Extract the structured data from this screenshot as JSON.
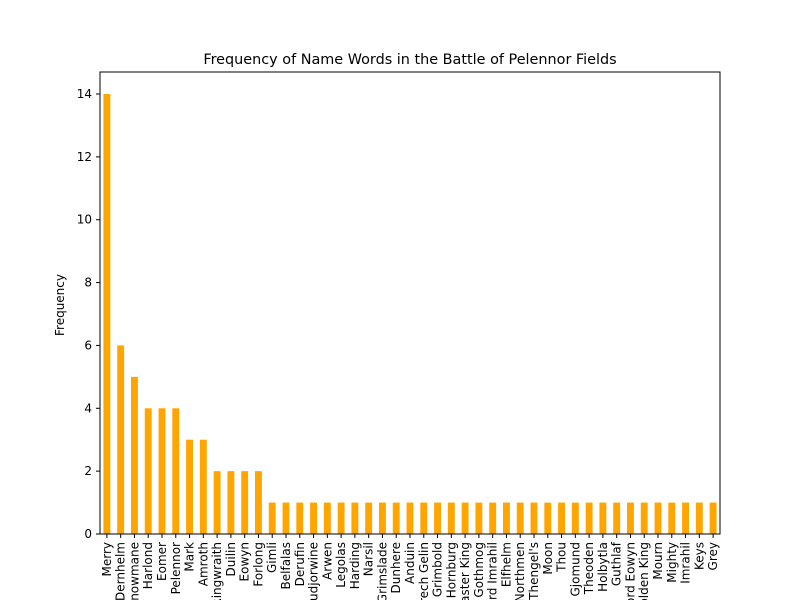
{
  "chart_data": {
    "type": "bar",
    "title": "Frequency of Name Words in the Battle of Pelennor Fields",
    "xlabel": "",
    "ylabel": "Frequency",
    "ylim": [
      0,
      14.7
    ],
    "yticks": [
      0,
      2,
      4,
      6,
      8,
      10,
      12,
      14
    ],
    "bar_color": "#ffa500",
    "grid": false,
    "legend": "none",
    "categories": [
      "Merry",
      "Dernhelm",
      "Snowmane",
      "Harlond",
      "Eomer",
      "Pelennor",
      "Mark",
      "Amroth",
      "Ringwraith",
      "Duilin",
      "Eowyn",
      "Forlong",
      "Gimli",
      "Belfalas",
      "Derufin",
      "Gudjorwine",
      "Arwen",
      "Legolas",
      "Harding",
      "Narsil",
      "Grimslade",
      "Dunhere",
      "Anduin",
      "Erech Gelin",
      "Grimbold",
      "Hornburg",
      "Easter King",
      "Gothmog",
      "Lord Imrahil",
      "Elfhelm",
      "Northmen",
      "Thengel's",
      "Moon",
      "Thou",
      "Gjomund",
      "Theoden",
      "Holbytla",
      "Guthlaf",
      "Lord Eowyn",
      "Golden King",
      "Mourn",
      "Mighty",
      "Imrahil",
      "Keys",
      "Grey"
    ],
    "values": [
      14,
      6,
      5,
      4,
      4,
      4,
      3,
      3,
      2,
      2,
      2,
      2,
      1,
      1,
      1,
      1,
      1,
      1,
      1,
      1,
      1,
      1,
      1,
      1,
      1,
      1,
      1,
      1,
      1,
      1,
      1,
      1,
      1,
      1,
      1,
      1,
      1,
      1,
      1,
      1,
      1,
      1,
      1,
      1,
      1
    ]
  }
}
